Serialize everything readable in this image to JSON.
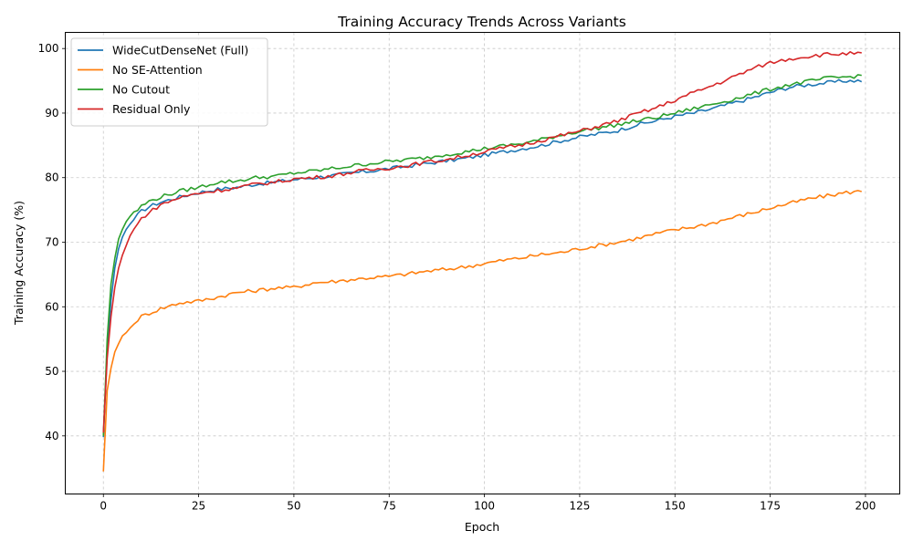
{
  "chart_data": {
    "type": "line",
    "title": "Training Accuracy Trends Across Variants",
    "xlabel": "Epoch",
    "ylabel": "Training Accuracy (%)",
    "xlim": [
      -10,
      209
    ],
    "ylim": [
      31,
      102.5
    ],
    "xticks": [
      0,
      25,
      50,
      75,
      100,
      125,
      150,
      175,
      200
    ],
    "yticks": [
      40,
      50,
      60,
      70,
      80,
      90,
      100
    ],
    "grid": true,
    "grid_style": "dashed",
    "legend_position": "top-left",
    "series": [
      {
        "name": "WideCutDenseNet (Full)",
        "color": "#1f77b4",
        "points": [
          [
            0,
            39.8
          ],
          [
            1,
            53
          ],
          [
            2,
            61
          ],
          [
            3,
            66
          ],
          [
            4,
            69
          ],
          [
            5,
            70.8
          ],
          [
            6,
            72
          ],
          [
            7,
            72.8
          ],
          [
            8,
            73.5
          ],
          [
            9,
            74.2
          ],
          [
            10,
            74.8
          ],
          [
            12,
            75.5
          ],
          [
            15,
            76.2
          ],
          [
            20,
            77
          ],
          [
            25,
            77.7
          ],
          [
            30,
            78.2
          ],
          [
            35,
            78.5
          ],
          [
            40,
            79
          ],
          [
            45,
            79.3
          ],
          [
            50,
            79.7
          ],
          [
            55,
            80
          ],
          [
            60,
            80.3
          ],
          [
            65,
            80.7
          ],
          [
            70,
            81
          ],
          [
            75,
            81.4
          ],
          [
            80,
            81.8
          ],
          [
            85,
            82.2
          ],
          [
            90,
            82.6
          ],
          [
            95,
            83
          ],
          [
            100,
            83.5
          ],
          [
            105,
            84
          ],
          [
            110,
            84.5
          ],
          [
            115,
            85
          ],
          [
            120,
            85.7
          ],
          [
            125,
            86.3
          ],
          [
            130,
            86.8
          ],
          [
            135,
            87.3
          ],
          [
            140,
            88.2
          ],
          [
            145,
            88.8
          ],
          [
            150,
            89.5
          ],
          [
            155,
            90
          ],
          [
            160,
            90.7
          ],
          [
            165,
            91.5
          ],
          [
            170,
            92.3
          ],
          [
            175,
            93.2
          ],
          [
            180,
            94
          ],
          [
            185,
            94.4
          ],
          [
            190,
            94.7
          ],
          [
            195,
            95
          ],
          [
            199,
            95
          ]
        ]
      },
      {
        "name": "No SE-Attention",
        "color": "#ff7f0e",
        "points": [
          [
            0,
            34.5
          ],
          [
            1,
            47
          ],
          [
            2,
            50.5
          ],
          [
            3,
            53
          ],
          [
            4,
            54.3
          ],
          [
            5,
            55.5
          ],
          [
            6,
            56
          ],
          [
            7,
            56.7
          ],
          [
            8,
            57.3
          ],
          [
            9,
            58
          ],
          [
            10,
            58.5
          ],
          [
            12,
            59
          ],
          [
            15,
            59.7
          ],
          [
            20,
            60.6
          ],
          [
            25,
            60.9
          ],
          [
            30,
            61.5
          ],
          [
            35,
            62.2
          ],
          [
            40,
            62.5
          ],
          [
            45,
            62.9
          ],
          [
            50,
            63
          ],
          [
            55,
            63.7
          ],
          [
            60,
            63.9
          ],
          [
            65,
            64.2
          ],
          [
            70,
            64.5
          ],
          [
            75,
            64.7
          ],
          [
            80,
            65.1
          ],
          [
            85,
            65.5
          ],
          [
            90,
            65.8
          ],
          [
            95,
            66.2
          ],
          [
            100,
            66.7
          ],
          [
            105,
            67.2
          ],
          [
            110,
            67.6
          ],
          [
            115,
            68.1
          ],
          [
            120,
            68.4
          ],
          [
            125,
            69
          ],
          [
            130,
            69.5
          ],
          [
            135,
            70
          ],
          [
            140,
            70.6
          ],
          [
            145,
            71.3
          ],
          [
            150,
            71.9
          ],
          [
            155,
            72.4
          ],
          [
            160,
            73
          ],
          [
            165,
            73.8
          ],
          [
            170,
            74.5
          ],
          [
            175,
            75.3
          ],
          [
            180,
            76
          ],
          [
            185,
            76.7
          ],
          [
            190,
            77.2
          ],
          [
            195,
            77.7
          ],
          [
            199,
            77.9
          ]
        ]
      },
      {
        "name": "No Cutout",
        "color": "#2ca02c",
        "points": [
          [
            0,
            40
          ],
          [
            1,
            55
          ],
          [
            2,
            63.5
          ],
          [
            3,
            67.5
          ],
          [
            4,
            70.5
          ],
          [
            5,
            72
          ],
          [
            6,
            73.2
          ],
          [
            7,
            74
          ],
          [
            8,
            74.7
          ],
          [
            9,
            75
          ],
          [
            10,
            75.6
          ],
          [
            12,
            76.3
          ],
          [
            15,
            77
          ],
          [
            20,
            77.9
          ],
          [
            25,
            78.5
          ],
          [
            30,
            79.3
          ],
          [
            35,
            79.5
          ],
          [
            40,
            80
          ],
          [
            45,
            80.2
          ],
          [
            50,
            80.7
          ],
          [
            55,
            81
          ],
          [
            60,
            81.4
          ],
          [
            65,
            81.8
          ],
          [
            70,
            82.2
          ],
          [
            75,
            82.5
          ],
          [
            80,
            82.8
          ],
          [
            85,
            83.1
          ],
          [
            90,
            83.6
          ],
          [
            95,
            84
          ],
          [
            100,
            84.5
          ],
          [
            105,
            84.9
          ],
          [
            110,
            85.3
          ],
          [
            115,
            85.9
          ],
          [
            120,
            86.6
          ],
          [
            125,
            87.2
          ],
          [
            130,
            87.7
          ],
          [
            135,
            88.2
          ],
          [
            140,
            88.8
          ],
          [
            145,
            89.3
          ],
          [
            150,
            90
          ],
          [
            155,
            90.7
          ],
          [
            160,
            91.4
          ],
          [
            165,
            92.1
          ],
          [
            170,
            92.9
          ],
          [
            175,
            93.7
          ],
          [
            180,
            94.4
          ],
          [
            185,
            94.9
          ],
          [
            190,
            95.4
          ],
          [
            195,
            95.6
          ],
          [
            199,
            95.8
          ]
        ]
      },
      {
        "name": "Residual Only",
        "color": "#d62728",
        "points": [
          [
            0,
            40.5
          ],
          [
            1,
            52
          ],
          [
            2,
            58.5
          ],
          [
            3,
            63
          ],
          [
            4,
            66
          ],
          [
            5,
            68
          ],
          [
            6,
            69.5
          ],
          [
            7,
            71
          ],
          [
            8,
            72
          ],
          [
            9,
            72.8
          ],
          [
            10,
            73.7
          ],
          [
            12,
            74.6
          ],
          [
            15,
            75.8
          ],
          [
            20,
            76.9
          ],
          [
            25,
            77.6
          ],
          [
            30,
            78
          ],
          [
            35,
            78.4
          ],
          [
            40,
            79
          ],
          [
            45,
            79.3
          ],
          [
            50,
            79.8
          ],
          [
            55,
            80
          ],
          [
            60,
            80.3
          ],
          [
            65,
            80.8
          ],
          [
            70,
            81.2
          ],
          [
            75,
            81.5
          ],
          [
            80,
            81.9
          ],
          [
            85,
            82.4
          ],
          [
            90,
            82.8
          ],
          [
            95,
            83.4
          ],
          [
            100,
            84
          ],
          [
            105,
            84.6
          ],
          [
            110,
            85.1
          ],
          [
            115,
            85.8
          ],
          [
            120,
            86.5
          ],
          [
            125,
            87.2
          ],
          [
            130,
            88
          ],
          [
            135,
            88.8
          ],
          [
            140,
            89.9
          ],
          [
            145,
            90.8
          ],
          [
            150,
            92
          ],
          [
            155,
            93.2
          ],
          [
            160,
            94.3
          ],
          [
            165,
            95.5
          ],
          [
            170,
            96.8
          ],
          [
            175,
            97.8
          ],
          [
            180,
            98.4
          ],
          [
            185,
            98.8
          ],
          [
            190,
            99.1
          ],
          [
            195,
            99.2
          ],
          [
            199,
            99.2
          ]
        ]
      }
    ]
  }
}
